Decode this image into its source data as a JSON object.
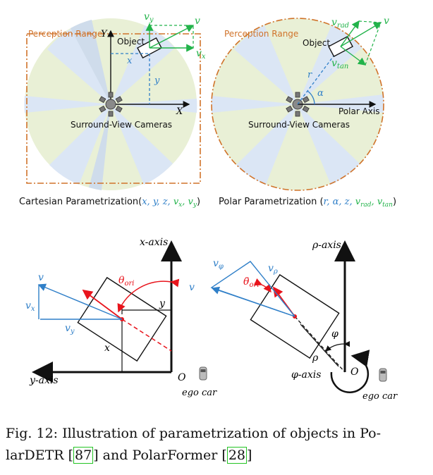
{
  "top_left": {
    "perception_label": "Perception Range",
    "object_label": "Object",
    "cameras_label": "Surround-View Cameras",
    "axis_y": "Y",
    "axis_x": "X",
    "coord_x": "x",
    "coord_y": "y",
    "vec_v": "v",
    "vec_vx": "v",
    "vec_vx_sub": "x",
    "vec_vy": "v",
    "vec_vy_sub": "y",
    "title_main": "Cartesian Parametrization(",
    "title_vars": "x, y, z, ",
    "title_vx": "v",
    "title_vx_sub": "x",
    "title_vy": "v",
    "title_vy_sub": "y",
    "title_close": ")"
  },
  "top_right": {
    "perception_label": "Perception Range",
    "object_label": "Object",
    "cameras_label": "Surround-View Cameras",
    "polar_axis": "Polar Axis",
    "coord_r": "r",
    "coord_alpha": "α",
    "vec_v": "v",
    "vec_vrad": "v",
    "vec_vrad_sub": "rad",
    "vec_vtan": "v",
    "vec_vtan_sub": "tan",
    "title_main": "Polar Parametrization (",
    "title_vars": "r, α, z, ",
    "title_vrad": "v",
    "title_vrad_sub": "rad",
    "title_vtan": "v",
    "title_vtan_sub": "tan",
    "title_close": ")"
  },
  "bottom_left": {
    "x_axis": "x-axis",
    "y_axis": "y-axis",
    "origin": "O",
    "ego": "ego car",
    "v": "v",
    "vx": "v",
    "vx_sub": "x",
    "vy": "v",
    "vy_sub": "y",
    "theta": "θ",
    "theta_sub": "ori",
    "x": "x",
    "y": "y"
  },
  "bottom_right": {
    "rho_axis": "ρ-axis",
    "phi_axis": "φ-axis",
    "origin": "O",
    "ego": "ego car",
    "v": "v",
    "vphi": "v",
    "vphi_sub": "φ",
    "vrho": "v",
    "vrho_sub": "ρ",
    "theta": "θ̄",
    "theta_sub": "ori",
    "phi": "φ",
    "rho": "ρ"
  },
  "caption": {
    "line1": "Fig. 12: Illustration of parametrization of objects in Po-",
    "line2_a": "larDETR [",
    "ref1": "87",
    "line2_b": "] and PolarFormer [",
    "ref2": "28",
    "line2_c": "]"
  },
  "colors": {
    "blue": "#2f7fc8",
    "green": "#22b34a",
    "red": "#e8141c",
    "orange": "#d0732a",
    "fan_blue": "#dfe8f6",
    "fan_green": "#e9f0d6"
  }
}
